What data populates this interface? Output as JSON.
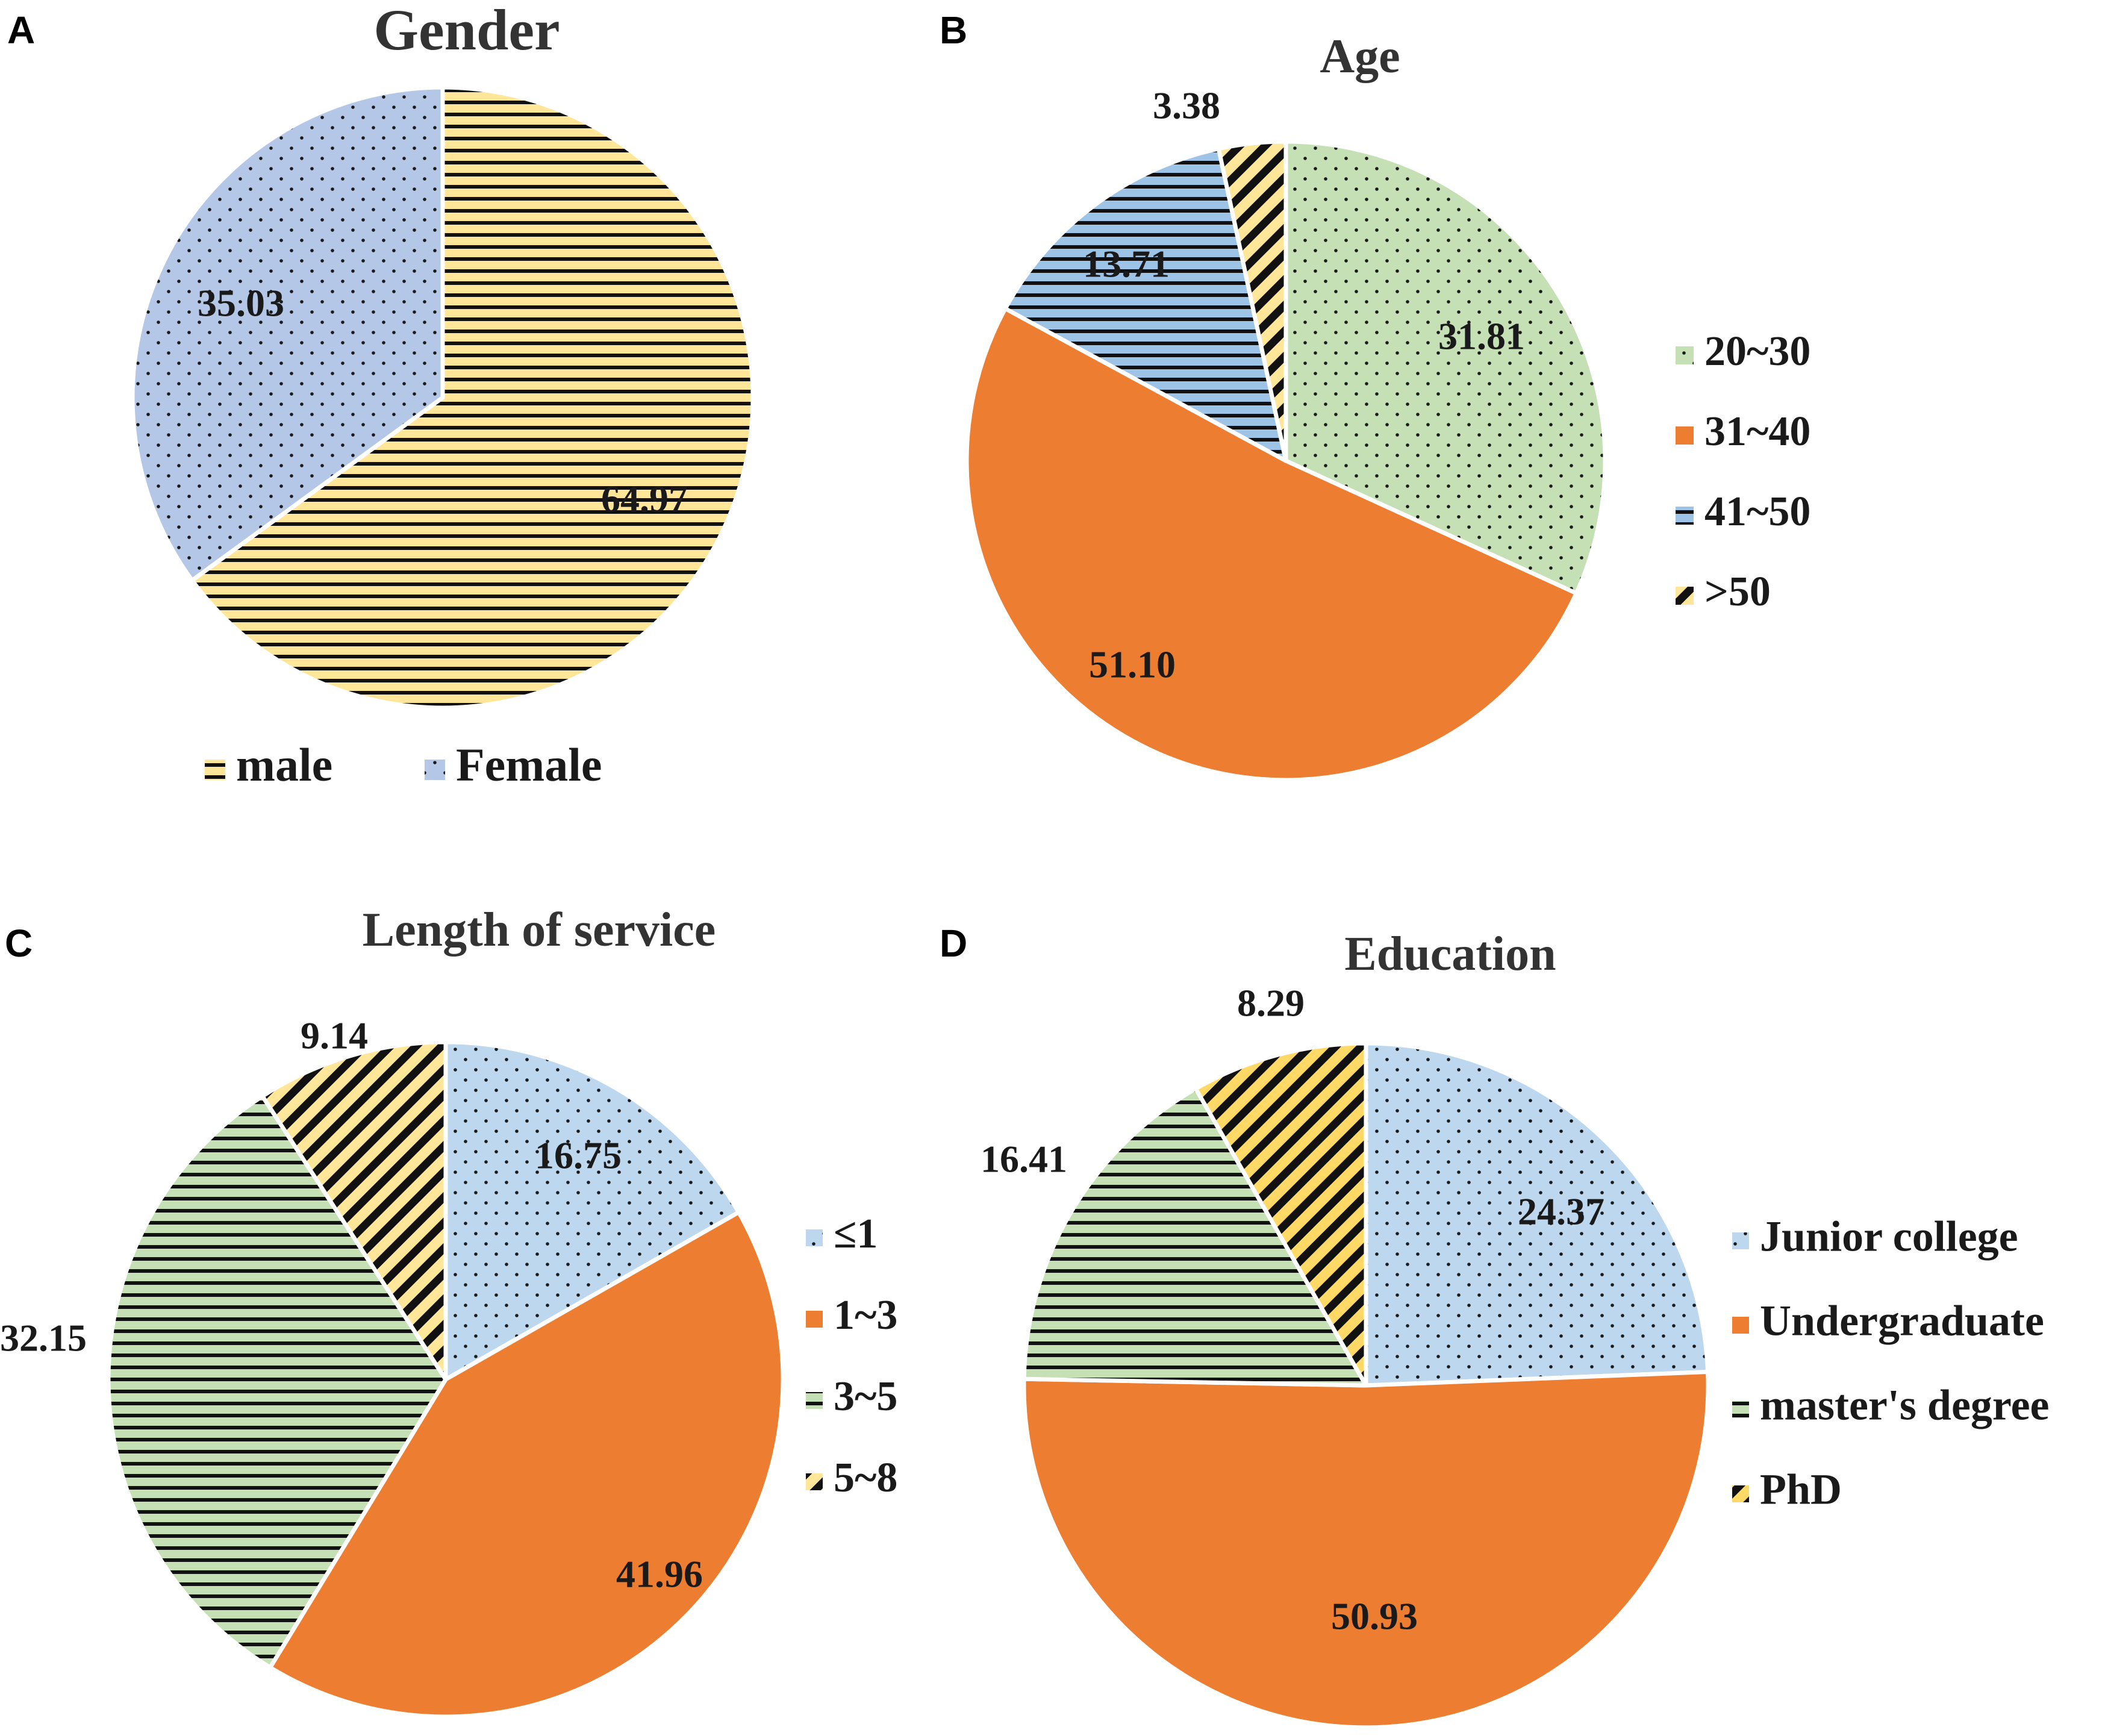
{
  "chart_data": [
    {
      "panel": "A",
      "type": "pie",
      "title": "Gender",
      "slices": [
        {
          "label": "male",
          "value": 64.97,
          "value_label": "64.97",
          "color": "#FFE699",
          "pattern": "hlines"
        },
        {
          "label": "Female",
          "value": 35.03,
          "value_label": "35.03",
          "color": "#B4C7E7",
          "pattern": "dots"
        }
      ],
      "legend_position": "bottom"
    },
    {
      "panel": "B",
      "type": "pie",
      "title": "Age",
      "slices": [
        {
          "label": "20~30",
          "value": 31.81,
          "value_label": "31.81",
          "color": "#C5E0B4",
          "pattern": "dots"
        },
        {
          "label": "31~40",
          "value": 51.1,
          "value_label": "51.10",
          "color": "#ED7D31",
          "pattern": "solid"
        },
        {
          "label": "41~50",
          "value": 13.71,
          "value_label": "13.71",
          "color": "#9DC3E6",
          "pattern": "hlines"
        },
        {
          "label": ">50",
          "value": 3.38,
          "value_label": "3.38",
          "color": "#FFE699",
          "pattern": "diag"
        }
      ],
      "legend_position": "right"
    },
    {
      "panel": "C",
      "type": "pie",
      "title": "Length of service",
      "slices": [
        {
          "label": "≤1",
          "value": 16.75,
          "value_label": "16.75",
          "color": "#BDD7EE",
          "pattern": "dots"
        },
        {
          "label": "1~3",
          "value": 41.96,
          "value_label": "41.96",
          "color": "#ED7D31",
          "pattern": "solid"
        },
        {
          "label": "3~5",
          "value": 32.15,
          "value_label": "32.15",
          "color": "#C5E0B4",
          "pattern": "hlines"
        },
        {
          "label": "5~8",
          "value": 9.14,
          "value_label": "9.14",
          "color": "#FFE699",
          "pattern": "diag"
        }
      ],
      "legend_position": "right"
    },
    {
      "panel": "D",
      "type": "pie",
      "title": "Education",
      "slices": [
        {
          "label": "Junior college",
          "value": 24.37,
          "value_label": "24.37",
          "color": "#BDD7EE",
          "pattern": "dots"
        },
        {
          "label": "Undergraduate",
          "value": 50.93,
          "value_label": "50.93",
          "color": "#ED7D31",
          "pattern": "solid"
        },
        {
          "label": "master's degree",
          "value": 16.41,
          "value_label": "16.41",
          "color": "#C5E0B4",
          "pattern": "hlines"
        },
        {
          "label": "PhD",
          "value": 8.29,
          "value_label": "8.29",
          "color": "#FFD966",
          "pattern": "diag"
        }
      ],
      "legend_position": "right"
    }
  ]
}
